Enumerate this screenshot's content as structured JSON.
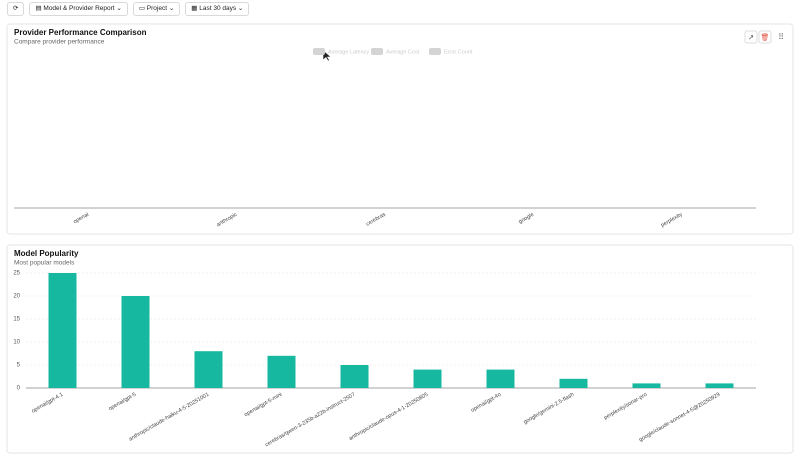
{
  "toolbar": {
    "buttons": [
      "Model & Provider Report",
      "Project",
      "Last 30 days"
    ]
  },
  "chart_data": [
    {
      "type": "bar",
      "title": "Provider Performance Comparison",
      "subtitle": "Compare provider performance",
      "categories": [
        "openai",
        "anthropic",
        "cerebras",
        "google",
        "perplexity"
      ],
      "series": [
        {
          "name": "Average Latency",
          "color": "#d4d4d4",
          "hidden": true
        },
        {
          "name": "Average Cost",
          "color": "#d4d4d4",
          "hidden": true
        },
        {
          "name": "Error Count",
          "color": "#d4d4d4",
          "hidden": true
        }
      ]
    },
    {
      "type": "bar",
      "title": "Model Popularity",
      "subtitle": "Most popular models",
      "categories": [
        "openai/gpt-4.1",
        "openai/gpt-5",
        "anthropic/claude-haiku-4-5-20251001",
        "openai/gpt-5-mini",
        "cerebras/qwen-3-235b-a22b-instruct-2507",
        "anthropic/claude-opus-4-1-20250805",
        "openai/gpt-4o",
        "google/gemini-2.5-flash",
        "perplexity/sonar-pro",
        "google/claude-sonnet-4-5@20250929"
      ],
      "values": [
        25,
        20,
        8,
        7,
        5,
        4,
        4,
        2,
        1,
        1
      ],
      "color": "#17b8a0",
      "ylim": [
        0,
        25
      ],
      "yticks": [
        0,
        5,
        10,
        15,
        20,
        25
      ],
      "grid": true
    }
  ]
}
